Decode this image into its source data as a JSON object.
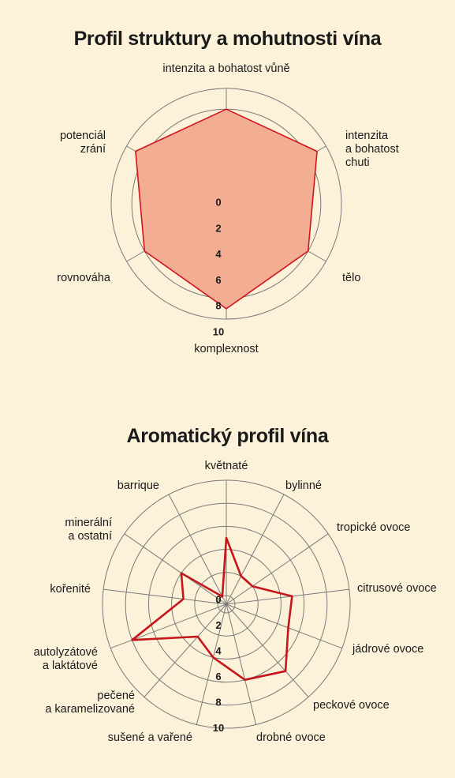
{
  "chart_data": [
    {
      "type": "radar",
      "title": "Profil struktury a mohutnosti vína",
      "axes": [
        [
          "intenzita a bohatost vůně"
        ],
        [
          "intenzita",
          "a bohatost",
          "chuti"
        ],
        [
          "tělo"
        ],
        [
          "komplexnost"
        ],
        [
          "rovnováha"
        ],
        [
          "potenciál",
          "zrání"
        ]
      ],
      "values": [
        8,
        9,
        8,
        9,
        8,
        9
      ],
      "rlim": [
        0,
        10
      ],
      "ticks": [
        "0",
        "2",
        "4",
        "6",
        "8",
        "10"
      ],
      "fill_color": "#f2ad92",
      "line_color": "#d0151f",
      "grid_color": "#7a7a7a"
    },
    {
      "type": "radar",
      "title": "Aromatický profil vína",
      "axes": [
        [
          "květnaté"
        ],
        [
          "bylinné"
        ],
        [
          "tropické ovoce"
        ],
        [
          "citrusové ovoce"
        ],
        [
          "jádrové ovoce"
        ],
        [
          "peckové ovoce"
        ],
        [
          "drobné ovoce"
        ],
        [
          "sušené a vařené"
        ],
        [
          "pečené",
          "a karamelizované"
        ],
        [
          "autolyzátové",
          "a laktátové"
        ],
        [
          "kořenité"
        ],
        [
          "minerální",
          "a ostatní"
        ],
        [
          "barrique"
        ]
      ],
      "values": [
        5,
        2,
        2,
        5,
        5,
        7,
        6,
        4,
        3,
        8,
        3,
        4,
        0
      ],
      "rlim": [
        0,
        10
      ],
      "ticks": [
        "0",
        "2",
        "4",
        "6",
        "8",
        "10"
      ],
      "line_color": "#c4161c",
      "grid_color": "#7a7a7a"
    }
  ]
}
